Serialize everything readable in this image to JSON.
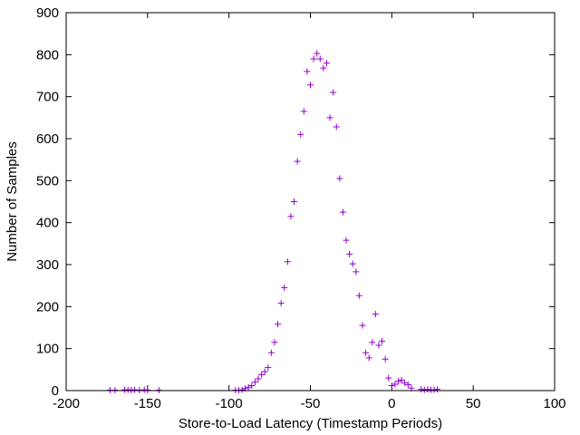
{
  "chart_data": {
    "type": "scatter",
    "title": "",
    "xlabel": "Store-to-Load Latency (Timestamp Periods)",
    "ylabel": "Number of Samples",
    "xlim": [
      -200,
      100
    ],
    "ylim": [
      0,
      900
    ],
    "xticks": [
      -200,
      -150,
      -100,
      -50,
      0,
      50,
      100
    ],
    "yticks": [
      0,
      100,
      200,
      300,
      400,
      500,
      600,
      700,
      800,
      900
    ],
    "xtick_labels": [
      "-200",
      "-150",
      "-100",
      "-50",
      "0",
      "50",
      "100"
    ],
    "ytick_labels": [
      "0",
      "100",
      "200",
      "300",
      "400",
      "500",
      "600",
      "700",
      "800",
      "900"
    ],
    "grid": false,
    "marker": "plus",
    "color": "#9400d3",
    "series": [
      {
        "points": [
          [
            -173,
            1
          ],
          [
            -170,
            1
          ],
          [
            -164,
            2
          ],
          [
            -162,
            2
          ],
          [
            -160,
            1
          ],
          [
            -158,
            2
          ],
          [
            -155,
            1
          ],
          [
            -152,
            2
          ],
          [
            -150,
            1
          ],
          [
            -143,
            1
          ],
          [
            -96,
            1
          ],
          [
            -94,
            1
          ],
          [
            -92,
            2
          ],
          [
            -90,
            5
          ],
          [
            -88,
            8
          ],
          [
            -86,
            12
          ],
          [
            -84,
            20
          ],
          [
            -82,
            28
          ],
          [
            -80,
            38
          ],
          [
            -78,
            45
          ],
          [
            -76,
            55
          ],
          [
            -74,
            90
          ],
          [
            -72,
            115
          ],
          [
            -70,
            158
          ],
          [
            -68,
            208
          ],
          [
            -66,
            245
          ],
          [
            -64,
            307
          ],
          [
            -62,
            415
          ],
          [
            -60,
            450
          ],
          [
            -58,
            546
          ],
          [
            -56,
            610
          ],
          [
            -54,
            665
          ],
          [
            -52,
            760
          ],
          [
            -50,
            728
          ],
          [
            -48,
            790
          ],
          [
            -46,
            803
          ],
          [
            -44,
            790
          ],
          [
            -42,
            768
          ],
          [
            -40,
            780
          ],
          [
            -38,
            650
          ],
          [
            -36,
            710
          ],
          [
            -34,
            628
          ],
          [
            -32,
            505
          ],
          [
            -30,
            425
          ],
          [
            -28,
            358
          ],
          [
            -26,
            325
          ],
          [
            -24,
            302
          ],
          [
            -22,
            283
          ],
          [
            -20,
            226
          ],
          [
            -18,
            155
          ],
          [
            -16,
            90
          ],
          [
            -14,
            78
          ],
          [
            -12,
            115
          ],
          [
            -10,
            182
          ],
          [
            -8,
            108
          ],
          [
            -6,
            118
          ],
          [
            -4,
            75
          ],
          [
            -2,
            30
          ],
          [
            0,
            12
          ],
          [
            2,
            15
          ],
          [
            4,
            22
          ],
          [
            6,
            25
          ],
          [
            8,
            18
          ],
          [
            10,
            14
          ],
          [
            12,
            6
          ],
          [
            18,
            3
          ],
          [
            20,
            2
          ],
          [
            22,
            3
          ],
          [
            24,
            2
          ],
          [
            26,
            2
          ],
          [
            28,
            3
          ]
        ]
      }
    ]
  }
}
